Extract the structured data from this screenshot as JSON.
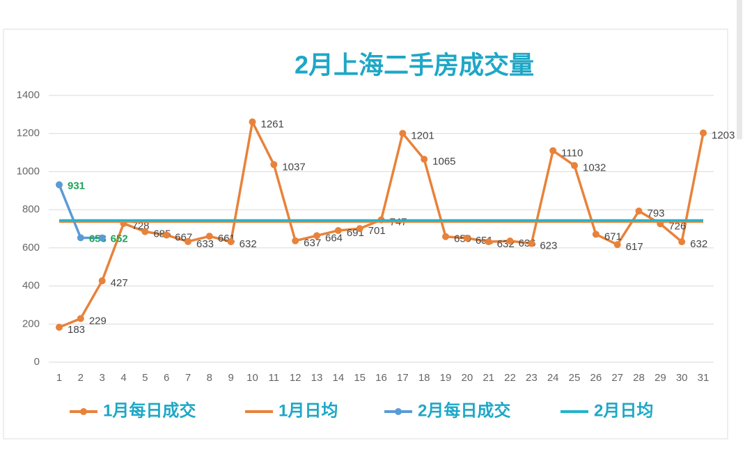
{
  "chart_data": {
    "type": "line",
    "title": "2月上海二手房成交量",
    "categories": [
      "1",
      "2",
      "3",
      "4",
      "5",
      "6",
      "7",
      "8",
      "9",
      "10",
      "11",
      "12",
      "13",
      "14",
      "15",
      "16",
      "17",
      "18",
      "19",
      "20",
      "21",
      "22",
      "23",
      "24",
      "25",
      "26",
      "27",
      "28",
      "29",
      "30",
      "31"
    ],
    "series": [
      {
        "name": "1月每日成交",
        "color": "#e8823a",
        "markers": true,
        "data_labels": true,
        "label_color": "#444444",
        "values": [
          183,
          229,
          427,
          728,
          685,
          667,
          633,
          661,
          632,
          1261,
          1037,
          637,
          664,
          691,
          701,
          747,
          1201,
          1065,
          659,
          651,
          632,
          636,
          623,
          1110,
          1032,
          671,
          617,
          793,
          726,
          632,
          1203
        ]
      },
      {
        "name": "1月日均",
        "color": "#e8823a",
        "markers": false,
        "data_labels": false,
        "values": [
          737,
          737,
          737,
          737,
          737,
          737,
          737,
          737,
          737,
          737,
          737,
          737,
          737,
          737,
          737,
          737,
          737,
          737,
          737,
          737,
          737,
          737,
          737,
          737,
          737,
          737,
          737,
          737,
          737,
          737,
          737
        ]
      },
      {
        "name": "2月每日成交",
        "color": "#5b9bd5",
        "markers": true,
        "data_labels": true,
        "label_color": "#1fa35a",
        "values": [
          931,
          653,
          652,
          null,
          null,
          null,
          null,
          null,
          null,
          null,
          null,
          null,
          null,
          null,
          null,
          null,
          null,
          null,
          null,
          null,
          null,
          null,
          null,
          null,
          null,
          null,
          null,
          null,
          null,
          null,
          null
        ]
      },
      {
        "name": "2月日均",
        "color": "#1fb5c9",
        "markers": false,
        "data_labels": false,
        "values": [
          745,
          745,
          745,
          745,
          745,
          745,
          745,
          745,
          745,
          745,
          745,
          745,
          745,
          745,
          745,
          745,
          745,
          745,
          745,
          745,
          745,
          745,
          745,
          745,
          745,
          745,
          745,
          745,
          745,
          745,
          745
        ]
      }
    ],
    "ylim": [
      0,
      1400
    ],
    "yticks": [
      0,
      200,
      400,
      600,
      800,
      1000,
      1200,
      1400
    ],
    "grid": true,
    "legend": "bottom"
  }
}
